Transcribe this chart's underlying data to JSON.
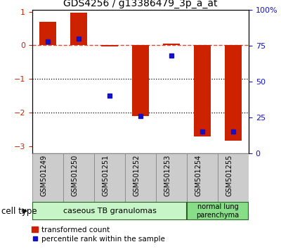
{
  "title": "GDS4256 / g13386479_3p_a_at",
  "samples": [
    "GSM501249",
    "GSM501250",
    "GSM501251",
    "GSM501252",
    "GSM501253",
    "GSM501254",
    "GSM501255"
  ],
  "red_values": [
    0.7,
    0.98,
    -0.03,
    -2.1,
    0.05,
    -2.7,
    -2.82
  ],
  "blue_values": [
    78,
    80,
    40,
    26,
    68,
    15,
    15
  ],
  "ylim_left": [
    -3.2,
    1.05
  ],
  "ylim_right": [
    0,
    100
  ],
  "yticks_left": [
    -3,
    -2,
    -1,
    0,
    1
  ],
  "yticks_right": [
    0,
    25,
    50,
    75,
    100
  ],
  "ytick_labels_right": [
    "0",
    "25",
    "50",
    "75",
    "100%"
  ],
  "hlines": [
    -2,
    -1
  ],
  "dashed_line": 0,
  "red_color": "#cc2200",
  "blue_color": "#1111cc",
  "bar_width": 0.55,
  "group1_label": "caseous TB granulomas",
  "group2_label": "normal lung\nparenchyma",
  "group1_indices": [
    0,
    1,
    2,
    3,
    4
  ],
  "group2_indices": [
    5,
    6
  ],
  "cell_type_label": "cell type",
  "legend_red": "transformed count",
  "legend_blue": "percentile rank within the sample",
  "bg_color_group1": "#c8f5c8",
  "bg_color_group2": "#88dd88",
  "tick_label_color_left": "#cc2200",
  "tick_label_color_right": "#1111cc",
  "sample_box_color": "#cccccc",
  "sample_box_edge": "#888888"
}
